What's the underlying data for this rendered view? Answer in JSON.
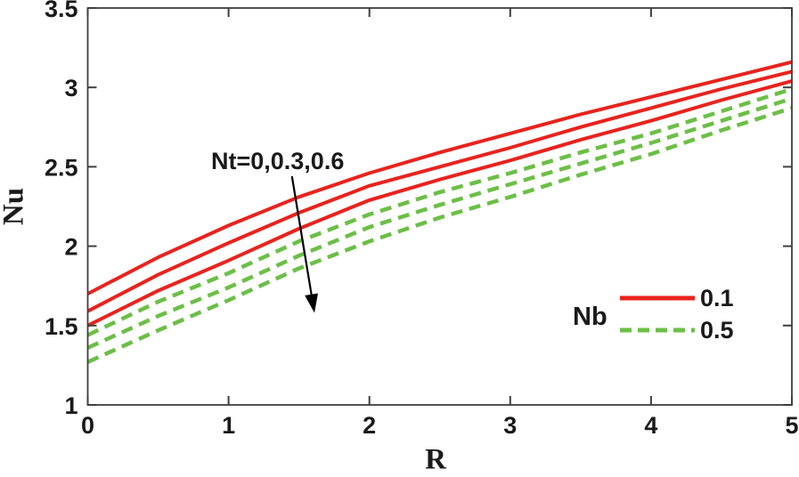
{
  "chart_data": {
    "type": "line",
    "title": "",
    "xlabel": "R",
    "ylabel": "Nu",
    "xlim": [
      0,
      5
    ],
    "ylim": [
      1,
      3.5
    ],
    "grid": false,
    "box": true,
    "x_tick_values": [
      0,
      1,
      2,
      3,
      4,
      5
    ],
    "x_tick_labels": [
      "0",
      "1",
      "2",
      "3",
      "4",
      "5"
    ],
    "y_tick_values": [
      1,
      1.5,
      2,
      2.5,
      3,
      3.5
    ],
    "y_tick_labels": [
      "1",
      "1.5",
      "2",
      "2.5",
      "3",
      "3.5"
    ],
    "x": [
      0,
      0.5,
      1,
      1.5,
      2,
      2.5,
      3,
      3.5,
      4,
      4.5,
      5
    ],
    "series": [
      {
        "name": "Nb=0.1, Nt=0",
        "color": "#e8231e",
        "style": "solid",
        "values": [
          1.7,
          1.93,
          2.13,
          2.31,
          2.46,
          2.59,
          2.71,
          2.83,
          2.94,
          3.05,
          3.16
        ]
      },
      {
        "name": "Nb=0.1, Nt=0.3",
        "color": "#e8231e",
        "style": "solid",
        "values": [
          1.59,
          1.82,
          2.02,
          2.21,
          2.38,
          2.5,
          2.62,
          2.75,
          2.87,
          2.99,
          3.1
        ]
      },
      {
        "name": "Nb=0.1, Nt=0.6",
        "color": "#e8231e",
        "style": "solid",
        "values": [
          1.5,
          1.72,
          1.91,
          2.11,
          2.29,
          2.42,
          2.54,
          2.67,
          2.79,
          2.92,
          3.04
        ]
      },
      {
        "name": "Nb=0.5, Nt=0",
        "color": "#6cbf47",
        "style": "dashed",
        "values": [
          1.44,
          1.65,
          1.83,
          2.03,
          2.2,
          2.34,
          2.46,
          2.59,
          2.71,
          2.85,
          2.99
        ]
      },
      {
        "name": "Nb=0.5, Nt=0.3",
        "color": "#6cbf47",
        "style": "dashed",
        "values": [
          1.36,
          1.56,
          1.74,
          1.94,
          2.12,
          2.26,
          2.39,
          2.52,
          2.65,
          2.79,
          2.93
        ]
      },
      {
        "name": "Nb=0.5, Nt=0.6",
        "color": "#6cbf47",
        "style": "dashed",
        "values": [
          1.27,
          1.47,
          1.66,
          1.86,
          2.03,
          2.18,
          2.31,
          2.45,
          2.58,
          2.73,
          2.87
        ]
      }
    ],
    "annotation": {
      "text": "Nt=0,0.3,0.6",
      "arrow_from_data": [
        1.45,
        2.44
      ],
      "arrow_to_data": [
        1.61,
        1.58
      ]
    },
    "legend_position": "lower right"
  },
  "legend": {
    "title": "Nb",
    "entries": [
      {
        "label": "0.1",
        "color": "#e8231e",
        "style": "solid"
      },
      {
        "label": "0.5",
        "color": "#6cbf47",
        "style": "dashed"
      }
    ]
  },
  "colors": {
    "axis": "#3f3f3f",
    "text": "#1a1a1a",
    "background": "#ffffff"
  }
}
